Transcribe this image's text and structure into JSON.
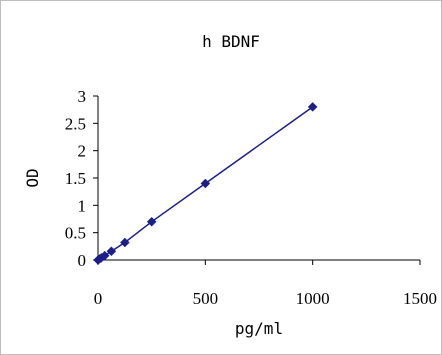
{
  "chart_data": {
    "type": "scatter",
    "title": "h BDNF",
    "xlabel": "pg/ml",
    "ylabel": "OD",
    "xlim": [
      0,
      1500
    ],
    "ylim": [
      0,
      3
    ],
    "xticks": [
      "0",
      "500",
      "1000",
      "1500"
    ],
    "yticks": [
      "0",
      "0.5",
      "1",
      "1.5",
      "2",
      "2.5",
      "3"
    ],
    "grid": false,
    "legend": "none",
    "series": [
      {
        "x": [
          0,
          7.8,
          15.6,
          31.2,
          62.5,
          125,
          250,
          500,
          1000
        ],
        "y": [
          0.0,
          0.02,
          0.04,
          0.08,
          0.16,
          0.32,
          0.7,
          1.4,
          2.8
        ],
        "marker": "diamond",
        "color": "#1b1f8a",
        "line": true
      }
    ]
  }
}
